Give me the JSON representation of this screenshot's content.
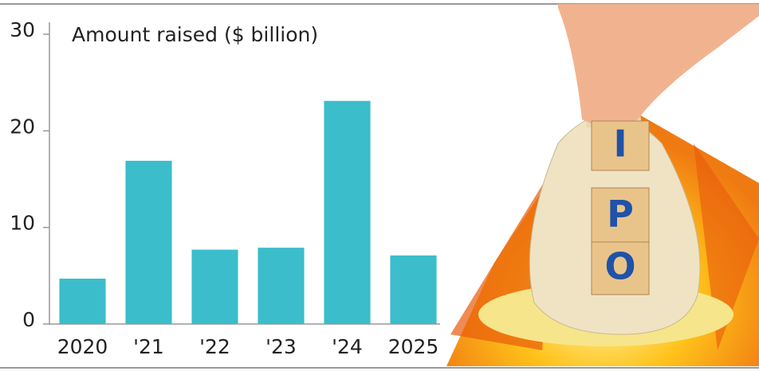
{
  "chart_data": {
    "type": "bar",
    "title": "Amount raised ($ billion)",
    "categories": [
      "2020",
      "'21",
      "'22",
      "'23",
      "'24",
      "2025"
    ],
    "values": [
      4.7,
      16.9,
      7.7,
      7.9,
      23.1,
      7.1
    ],
    "color": "#3bbdcb",
    "ylim": [
      0,
      30
    ],
    "yticks": [
      0,
      10,
      20,
      30
    ],
    "grid": false
  },
  "illustration_letters": [
    "I",
    "P",
    "O"
  ]
}
